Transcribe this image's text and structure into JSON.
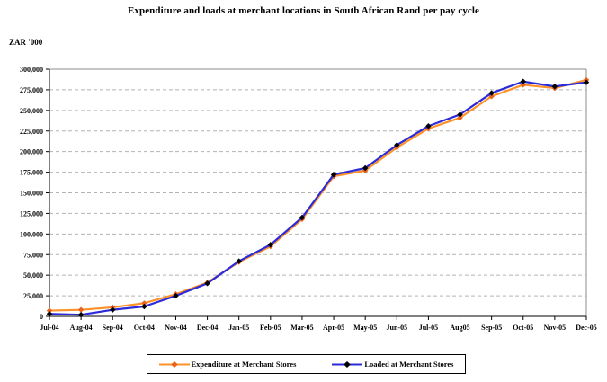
{
  "title": "Expenditure and loads at merchant locations in South African Rand per pay cycle",
  "y_unit_label": "ZAR '000",
  "colors": {
    "background": "#FFFFFF",
    "grid": "#B3B3B3",
    "plot_border": "#8C8C8C",
    "axis": "#000000",
    "expenditure_line": "#FF9129",
    "expenditure_marker": "#E8641E",
    "loaded_line": "#2B2BD9",
    "loaded_marker": "#000000"
  },
  "chart_data": {
    "type": "line",
    "title": "Expenditure and loads at merchant locations in South African Rand per pay cycle",
    "xlabel": "",
    "ylabel": "ZAR '000",
    "ylim": [
      0,
      300000
    ],
    "ytick_step": 25000,
    "ytick_labels": [
      "0",
      "25,000",
      "50,000",
      "75,000",
      "100,000",
      "125,000",
      "150,000",
      "175,000",
      "200,000",
      "225,000",
      "250,000",
      "275,000",
      "300,000"
    ],
    "grid": "horizontal-dashed",
    "legend_position": "bottom-center",
    "categories": [
      "Jul-04",
      "Aug-04",
      "Sep-04",
      "Oct-04",
      "Nov-04",
      "Dec-04",
      "Jan-05",
      "Feb-05",
      "Mar-05",
      "Apr-05",
      "May-05",
      "Jun-05",
      "Jul-05",
      "Aug05",
      "Sep-05",
      "Oct-05",
      "Nov-05",
      "Dec-05"
    ],
    "series": [
      {
        "name": "Expenditure at Merchant Stores",
        "color": "#FF9129",
        "marker_color": "#E8641E",
        "marker": "diamond",
        "values": [
          7000,
          8000,
          11000,
          16000,
          27000,
          41000,
          66000,
          85000,
          118000,
          170000,
          177000,
          205000,
          228000,
          241000,
          267000,
          281000,
          277000,
          287000
        ]
      },
      {
        "name": "Loaded at Merchant Stores",
        "color": "#2B2BD9",
        "marker_color": "#000000",
        "marker": "diamond",
        "values": [
          3000,
          2000,
          8000,
          12000,
          25000,
          40000,
          67000,
          87000,
          120000,
          172000,
          180000,
          208000,
          231000,
          245000,
          271000,
          285000,
          279000,
          284000
        ]
      }
    ]
  }
}
